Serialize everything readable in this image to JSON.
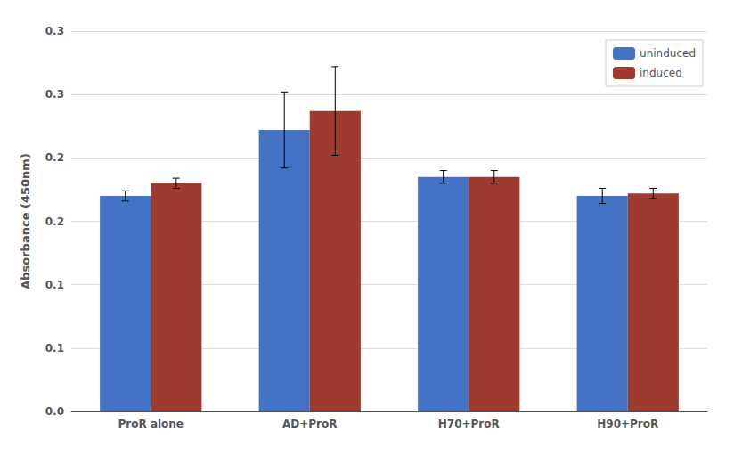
{
  "chart_data": {
    "type": "bar",
    "ylabel": "Absorbance (450nm)",
    "categories": [
      "ProR alone",
      "AD+ProR",
      "H70+ProR",
      "H90+ProR"
    ],
    "series": [
      {
        "name": "uninduced",
        "color": "#4472C4",
        "values": [
          0.17,
          0.222,
          0.185,
          0.17
        ],
        "errors": [
          0.004,
          0.03,
          0.005,
          0.006
        ]
      },
      {
        "name": "induced",
        "color": "#9E3A2E",
        "values": [
          0.18,
          0.237,
          0.185,
          0.172
        ],
        "errors": [
          0.004,
          0.035,
          0.005,
          0.004
        ]
      }
    ],
    "ylim": [
      0.0,
      0.3
    ],
    "yticks": [
      {
        "value": 0.0,
        "label": "0.0"
      },
      {
        "value": 0.05,
        "label": "0.1"
      },
      {
        "value": 0.1,
        "label": "0.1"
      },
      {
        "value": 0.15,
        "label": "0.2"
      },
      {
        "value": 0.2,
        "label": "0.2"
      },
      {
        "value": 0.25,
        "label": "0.3"
      },
      {
        "value": 0.3,
        "label": "0.3"
      }
    ],
    "grid": true,
    "legend": "upper right"
  }
}
